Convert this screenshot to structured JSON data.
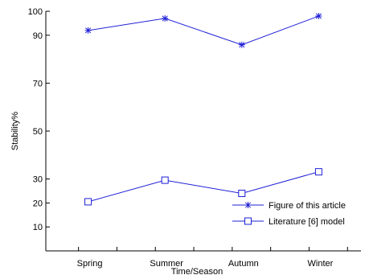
{
  "chart_data": {
    "type": "line",
    "categories": [
      "Spring",
      "Summer",
      "Autumn",
      "Winter"
    ],
    "x": [
      1,
      2,
      3,
      4
    ],
    "series": [
      {
        "name": "Figure of this article",
        "values": [
          92,
          97,
          86,
          98
        ],
        "marker": "asterisk",
        "color": "#1f1fd6"
      },
      {
        "name": "Literature [6] model",
        "values": [
          20.5,
          29.5,
          24,
          33
        ],
        "marker": "square",
        "color": "#1f1fd6"
      }
    ],
    "xlabel": "Time/Season",
    "ylabel": "Stability%",
    "ylim": [
      0,
      100
    ],
    "xlim": [
      0.45,
      4.55
    ],
    "y_ticks": [
      "10",
      "20",
      "30",
      "50",
      "70",
      "90",
      "100"
    ],
    "y_tick_positions": [
      10,
      20,
      30,
      50,
      70,
      90,
      100
    ],
    "x_ticks": [
      0.875,
      1.375,
      1.875,
      2.375,
      2.875,
      3.375,
      3.875,
      4.375
    ],
    "grid": false,
    "legend": "bottom-right",
    "axis_color": "#000000"
  }
}
